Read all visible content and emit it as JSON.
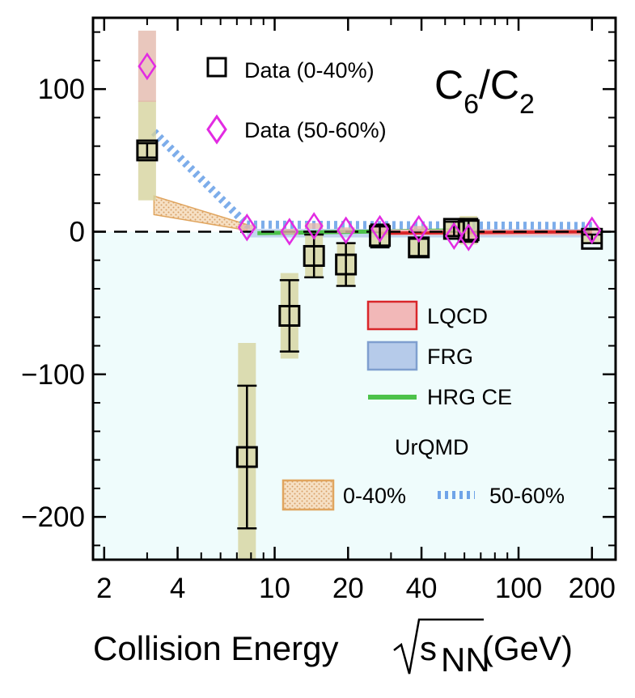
{
  "chart_data": {
    "type": "scatter",
    "title_main": "C",
    "title_sub1": "6",
    "title_slash": "/C",
    "title_sub2": "2",
    "xlabel_prefix": "Collision Energy ",
    "xlabel_s": "s",
    "xlabel_nn": "NN",
    "xlabel_suffix": " (GeV)",
    "x_scale": "log",
    "xlim": [
      1.8,
      250
    ],
    "ylim": [
      -230,
      150
    ],
    "x_ticks": [
      {
        "value": 2,
        "label": "2"
      },
      {
        "value": 4,
        "label": "4"
      },
      {
        "value": 10,
        "label": "10"
      },
      {
        "value": 20,
        "label": "20"
      },
      {
        "value": 40,
        "label": "40"
      },
      {
        "value": 100,
        "label": "100"
      },
      {
        "value": 200,
        "label": "200"
      }
    ],
    "y_ticks": [
      {
        "value": 100,
        "label": "100"
      },
      {
        "value": 0,
        "label": "0"
      },
      {
        "value": -100,
        "label": "−100"
      },
      {
        "value": -200,
        "label": "−200"
      }
    ],
    "shaded_region": {
      "from": -230,
      "to": 0,
      "color": "#effcfc"
    },
    "zero_line": true,
    "series": [
      {
        "name": "Data (0-40%)",
        "marker": "square",
        "color": "#000000",
        "points": [
          {
            "x": 3.0,
            "y": 57,
            "stat": 5,
            "sys": 35
          },
          {
            "x": 7.7,
            "y": -158,
            "stat": 50,
            "sys": 80
          },
          {
            "x": 11.5,
            "y": -59,
            "stat": 25,
            "sys": 30
          },
          {
            "x": 14.5,
            "y": -17,
            "stat": 15,
            "sys": 15
          },
          {
            "x": 19.6,
            "y": -23,
            "stat": 15,
            "sys": 15
          },
          {
            "x": 27,
            "y": -3,
            "stat": 8,
            "sys": 8
          },
          {
            "x": 39,
            "y": -11,
            "stat": 6,
            "sys": 6
          },
          {
            "x": 54.4,
            "y": 2,
            "stat": 5,
            "sys": 5
          },
          {
            "x": 62.4,
            "y": 1,
            "stat": 8,
            "sys": 10
          },
          {
            "x": 200,
            "y": -5,
            "stat": 3,
            "sys": 3
          }
        ]
      },
      {
        "name": "Data (50-60%)",
        "marker": "diamond",
        "color": "#e22be2",
        "points": [
          {
            "x": 3.0,
            "y": 116,
            "sys": 25
          },
          {
            "x": 7.7,
            "y": 3,
            "sys": 2
          },
          {
            "x": 11.5,
            "y": 0,
            "sys": 2
          },
          {
            "x": 14.5,
            "y": 4,
            "sys": 2
          },
          {
            "x": 19.6,
            "y": 1,
            "sys": 2
          },
          {
            "x": 27,
            "y": 2,
            "sys": 2
          },
          {
            "x": 39,
            "y": 2,
            "sys": 2
          },
          {
            "x": 54.4,
            "y": -3,
            "sys": 2
          },
          {
            "x": 62.4,
            "y": -4,
            "sys": 2
          },
          {
            "x": 200,
            "y": 1,
            "sys": 2
          }
        ]
      }
    ],
    "models": {
      "lqcd": {
        "name": "LQCD",
        "fill": "#f2b8b8",
        "stroke": "#d9262a",
        "x": [
          27,
          200
        ],
        "y": [
          -1,
          0
        ]
      },
      "frg": {
        "name": "FRG",
        "fill": "#b6cbea",
        "stroke": "#7f9fcf",
        "x": [
          7.7,
          200
        ],
        "y": [
          -2,
          0
        ]
      },
      "hrg": {
        "name": "HRG CE",
        "color": "#4cc24a",
        "x": [
          8.5,
          60
        ],
        "y": [
          -1,
          1
        ]
      },
      "urqmd_0_40": {
        "name": "0-40%",
        "fill": "#f4d7b6",
        "stroke": "#e0a55f",
        "x": [
          3.2,
          7.7
        ],
        "y_hi": [
          25,
          5
        ],
        "y_lo": [
          12,
          1
        ]
      },
      "urqmd_50_60": {
        "name": "50-60%",
        "color": "#6fa4e8",
        "x": [
          3.2,
          7.7,
          200
        ],
        "y": [
          70,
          5,
          4
        ]
      }
    },
    "legend_title": "UrQMD",
    "legend_placement": "top-right"
  }
}
